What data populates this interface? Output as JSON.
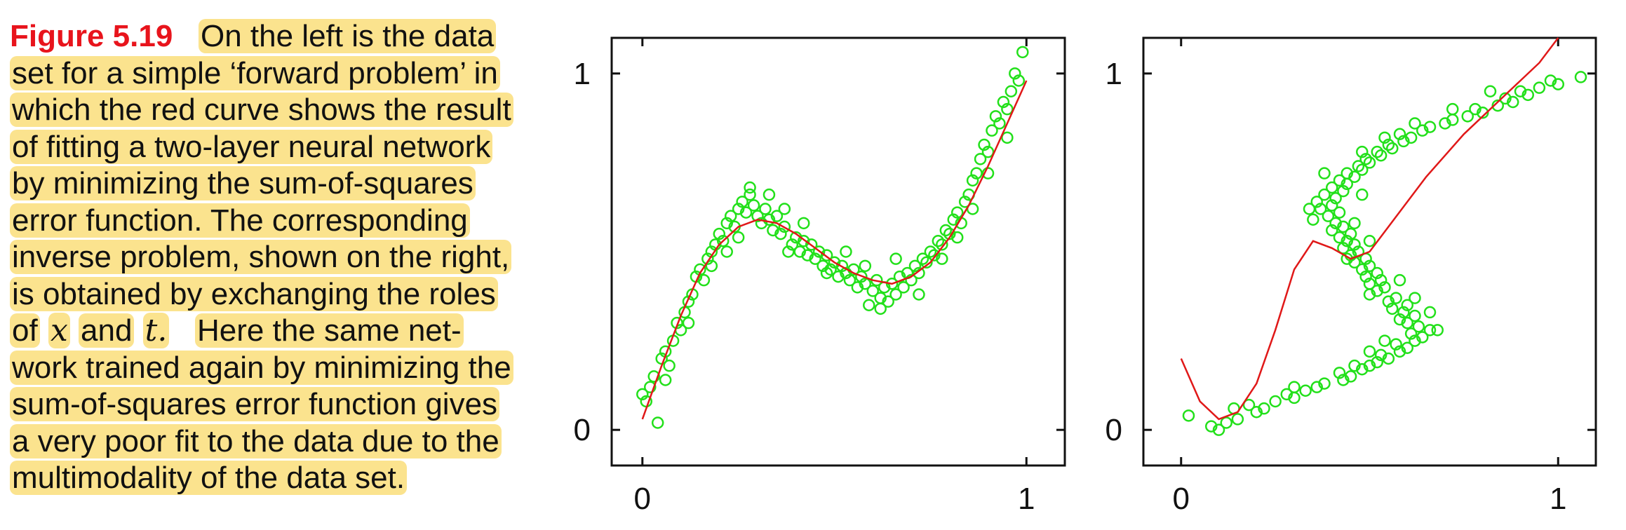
{
  "caption": {
    "label": "Figure 5.19",
    "lines": [
      "On the left is the data",
      "set for a simple ‘forward problem’ in",
      "which the red curve shows the result",
      "of fitting a two-layer neural network",
      "by minimizing the sum-of-squares",
      "error function.  The corresponding",
      "inverse problem, shown on the right,",
      "is obtained by exchanging the roles",
      "Here the same net-",
      "work trained again by minimizing the",
      "sum-of-squares error function gives",
      "a very poor fit to the data due to the",
      "multimodality of the data set."
    ],
    "roles_of": "of",
    "var_x": "x",
    "and_word": "and",
    "var_t": "t."
  },
  "colors": {
    "points": "#22e01a",
    "curve": "#e01818",
    "highlight": "#fbe38e"
  },
  "chart_data": [
    {
      "type": "scatter",
      "title": "",
      "xlabel": "",
      "ylabel": "",
      "xlim": [
        -0.08,
        1.1
      ],
      "ylim": [
        -0.1,
        1.1
      ],
      "x_ticks": [
        "0",
        "1"
      ],
      "y_ticks": [
        "0",
        "1"
      ],
      "points": [
        [
          0.0,
          0.1
        ],
        [
          0.01,
          0.08
        ],
        [
          0.02,
          0.12
        ],
        [
          0.03,
          0.15
        ],
        [
          0.04,
          0.02
        ],
        [
          0.05,
          0.2
        ],
        [
          0.06,
          0.22
        ],
        [
          0.07,
          0.18
        ],
        [
          0.08,
          0.25
        ],
        [
          0.09,
          0.3
        ],
        [
          0.1,
          0.28
        ],
        [
          0.11,
          0.33
        ],
        [
          0.12,
          0.36
        ],
        [
          0.13,
          0.38
        ],
        [
          0.14,
          0.43
        ],
        [
          0.15,
          0.45
        ],
        [
          0.16,
          0.42
        ],
        [
          0.17,
          0.48
        ],
        [
          0.18,
          0.5
        ],
        [
          0.19,
          0.52
        ],
        [
          0.2,
          0.55
        ],
        [
          0.21,
          0.53
        ],
        [
          0.22,
          0.58
        ],
        [
          0.23,
          0.6
        ],
        [
          0.24,
          0.57
        ],
        [
          0.25,
          0.62
        ],
        [
          0.26,
          0.64
        ],
        [
          0.27,
          0.61
        ],
        [
          0.28,
          0.66
        ],
        [
          0.29,
          0.63
        ],
        [
          0.3,
          0.6
        ],
        [
          0.31,
          0.58
        ],
        [
          0.32,
          0.62
        ],
        [
          0.33,
          0.59
        ],
        [
          0.34,
          0.56
        ],
        [
          0.35,
          0.6
        ],
        [
          0.36,
          0.55
        ],
        [
          0.37,
          0.57
        ],
        [
          0.38,
          0.5
        ],
        [
          0.39,
          0.52
        ],
        [
          0.4,
          0.54
        ],
        [
          0.41,
          0.5
        ],
        [
          0.42,
          0.53
        ],
        [
          0.43,
          0.49
        ],
        [
          0.44,
          0.52
        ],
        [
          0.45,
          0.48
        ],
        [
          0.46,
          0.5
        ],
        [
          0.47,
          0.46
        ],
        [
          0.48,
          0.49
        ],
        [
          0.49,
          0.45
        ],
        [
          0.5,
          0.47
        ],
        [
          0.51,
          0.43
        ],
        [
          0.52,
          0.46
        ],
        [
          0.53,
          0.44
        ],
        [
          0.54,
          0.42
        ],
        [
          0.55,
          0.45
        ],
        [
          0.56,
          0.4
        ],
        [
          0.57,
          0.43
        ],
        [
          0.58,
          0.41
        ],
        [
          0.59,
          0.35
        ],
        [
          0.6,
          0.39
        ],
        [
          0.61,
          0.42
        ],
        [
          0.62,
          0.37
        ],
        [
          0.63,
          0.4
        ],
        [
          0.64,
          0.36
        ],
        [
          0.65,
          0.41
        ],
        [
          0.66,
          0.38
        ],
        [
          0.67,
          0.43
        ],
        [
          0.68,
          0.4
        ],
        [
          0.69,
          0.44
        ],
        [
          0.7,
          0.42
        ],
        [
          0.71,
          0.46
        ],
        [
          0.72,
          0.44
        ],
        [
          0.73,
          0.48
        ],
        [
          0.74,
          0.47
        ],
        [
          0.75,
          0.5
        ],
        [
          0.76,
          0.49
        ],
        [
          0.77,
          0.53
        ],
        [
          0.78,
          0.52
        ],
        [
          0.79,
          0.56
        ],
        [
          0.8,
          0.55
        ],
        [
          0.81,
          0.59
        ],
        [
          0.82,
          0.61
        ],
        [
          0.83,
          0.58
        ],
        [
          0.84,
          0.64
        ],
        [
          0.85,
          0.66
        ],
        [
          0.86,
          0.7
        ],
        [
          0.87,
          0.72
        ],
        [
          0.88,
          0.76
        ],
        [
          0.89,
          0.8
        ],
        [
          0.9,
          0.78
        ],
        [
          0.91,
          0.84
        ],
        [
          0.92,
          0.88
        ],
        [
          0.93,
          0.86
        ],
        [
          0.94,
          0.92
        ],
        [
          0.95,
          0.9
        ],
        [
          0.96,
          0.95
        ],
        [
          0.97,
          1.0
        ],
        [
          0.98,
          0.98
        ],
        [
          0.99,
          1.06
        ],
        [
          0.06,
          0.14
        ],
        [
          0.12,
          0.3
        ],
        [
          0.18,
          0.46
        ],
        [
          0.22,
          0.5
        ],
        [
          0.25,
          0.54
        ],
        [
          0.28,
          0.68
        ],
        [
          0.33,
          0.66
        ],
        [
          0.37,
          0.62
        ],
        [
          0.42,
          0.58
        ],
        [
          0.48,
          0.44
        ],
        [
          0.53,
          0.5
        ],
        [
          0.58,
          0.46
        ],
        [
          0.62,
          0.34
        ],
        [
          0.66,
          0.48
        ],
        [
          0.72,
          0.38
        ],
        [
          0.78,
          0.48
        ],
        [
          0.82,
          0.54
        ],
        [
          0.86,
          0.62
        ],
        [
          0.9,
          0.72
        ],
        [
          0.95,
          0.82
        ]
      ],
      "curve_x": [
        0,
        0.05,
        0.1,
        0.15,
        0.2,
        0.25,
        0.3,
        0.35,
        0.4,
        0.45,
        0.5,
        0.55,
        0.6,
        0.65,
        0.7,
        0.75,
        0.8,
        0.85,
        0.9,
        0.95,
        1.0
      ],
      "curve_y": [
        0.03,
        0.18,
        0.32,
        0.44,
        0.52,
        0.57,
        0.59,
        0.58,
        0.55,
        0.51,
        0.47,
        0.44,
        0.42,
        0.41,
        0.43,
        0.47,
        0.54,
        0.63,
        0.74,
        0.86,
        0.98
      ]
    },
    {
      "type": "scatter",
      "title": "",
      "xlabel": "",
      "ylabel": "",
      "xlim": [
        -0.1,
        1.1
      ],
      "ylim": [
        -0.1,
        1.1
      ],
      "x_ticks": [
        "0",
        "1"
      ],
      "y_ticks": [
        "0",
        "1"
      ],
      "points": [
        [
          0.1,
          0.0
        ],
        [
          0.08,
          0.01
        ],
        [
          0.12,
          0.02
        ],
        [
          0.15,
          0.03
        ],
        [
          0.02,
          0.04
        ],
        [
          0.2,
          0.05
        ],
        [
          0.22,
          0.06
        ],
        [
          0.18,
          0.07
        ],
        [
          0.25,
          0.08
        ],
        [
          0.3,
          0.09
        ],
        [
          0.28,
          0.1
        ],
        [
          0.33,
          0.11
        ],
        [
          0.36,
          0.12
        ],
        [
          0.38,
          0.13
        ],
        [
          0.43,
          0.14
        ],
        [
          0.45,
          0.15
        ],
        [
          0.42,
          0.16
        ],
        [
          0.48,
          0.17
        ],
        [
          0.5,
          0.18
        ],
        [
          0.52,
          0.19
        ],
        [
          0.55,
          0.2
        ],
        [
          0.53,
          0.21
        ],
        [
          0.58,
          0.22
        ],
        [
          0.6,
          0.23
        ],
        [
          0.57,
          0.24
        ],
        [
          0.62,
          0.25
        ],
        [
          0.64,
          0.26
        ],
        [
          0.61,
          0.27
        ],
        [
          0.66,
          0.28
        ],
        [
          0.63,
          0.29
        ],
        [
          0.6,
          0.3
        ],
        [
          0.58,
          0.31
        ],
        [
          0.62,
          0.32
        ],
        [
          0.59,
          0.33
        ],
        [
          0.56,
          0.34
        ],
        [
          0.6,
          0.35
        ],
        [
          0.55,
          0.36
        ],
        [
          0.57,
          0.37
        ],
        [
          0.5,
          0.38
        ],
        [
          0.52,
          0.39
        ],
        [
          0.54,
          0.4
        ],
        [
          0.5,
          0.41
        ],
        [
          0.53,
          0.42
        ],
        [
          0.49,
          0.43
        ],
        [
          0.52,
          0.44
        ],
        [
          0.48,
          0.45
        ],
        [
          0.5,
          0.46
        ],
        [
          0.46,
          0.47
        ],
        [
          0.49,
          0.48
        ],
        [
          0.45,
          0.49
        ],
        [
          0.47,
          0.5
        ],
        [
          0.43,
          0.51
        ],
        [
          0.46,
          0.52
        ],
        [
          0.44,
          0.53
        ],
        [
          0.42,
          0.54
        ],
        [
          0.45,
          0.55
        ],
        [
          0.4,
          0.56
        ],
        [
          0.43,
          0.57
        ],
        [
          0.41,
          0.58
        ],
        [
          0.35,
          0.59
        ],
        [
          0.39,
          0.6
        ],
        [
          0.42,
          0.61
        ],
        [
          0.37,
          0.62
        ],
        [
          0.4,
          0.63
        ],
        [
          0.36,
          0.64
        ],
        [
          0.41,
          0.65
        ],
        [
          0.38,
          0.66
        ],
        [
          0.43,
          0.67
        ],
        [
          0.4,
          0.68
        ],
        [
          0.44,
          0.69
        ],
        [
          0.42,
          0.7
        ],
        [
          0.46,
          0.71
        ],
        [
          0.44,
          0.72
        ],
        [
          0.48,
          0.73
        ],
        [
          0.47,
          0.74
        ],
        [
          0.5,
          0.75
        ],
        [
          0.49,
          0.76
        ],
        [
          0.53,
          0.77
        ],
        [
          0.52,
          0.78
        ],
        [
          0.56,
          0.79
        ],
        [
          0.55,
          0.8
        ],
        [
          0.59,
          0.81
        ],
        [
          0.61,
          0.82
        ],
        [
          0.58,
          0.83
        ],
        [
          0.64,
          0.84
        ],
        [
          0.66,
          0.85
        ],
        [
          0.7,
          0.86
        ],
        [
          0.72,
          0.87
        ],
        [
          0.76,
          0.88
        ],
        [
          0.8,
          0.89
        ],
        [
          0.78,
          0.9
        ],
        [
          0.84,
          0.91
        ],
        [
          0.88,
          0.92
        ],
        [
          0.86,
          0.93
        ],
        [
          0.92,
          0.94
        ],
        [
          0.9,
          0.95
        ],
        [
          0.95,
          0.96
        ],
        [
          1.0,
          0.97
        ],
        [
          0.98,
          0.98
        ],
        [
          1.06,
          0.99
        ],
        [
          0.14,
          0.06
        ],
        [
          0.3,
          0.12
        ],
        [
          0.46,
          0.18
        ],
        [
          0.5,
          0.22
        ],
        [
          0.54,
          0.25
        ],
        [
          0.68,
          0.28
        ],
        [
          0.66,
          0.33
        ],
        [
          0.62,
          0.37
        ],
        [
          0.58,
          0.42
        ],
        [
          0.44,
          0.48
        ],
        [
          0.5,
          0.53
        ],
        [
          0.46,
          0.58
        ],
        [
          0.34,
          0.62
        ],
        [
          0.48,
          0.66
        ],
        [
          0.38,
          0.72
        ],
        [
          0.48,
          0.78
        ],
        [
          0.54,
          0.82
        ],
        [
          0.62,
          0.86
        ],
        [
          0.72,
          0.9
        ],
        [
          0.82,
          0.95
        ]
      ],
      "curve_x": [
        0,
        0.05,
        0.1,
        0.15,
        0.2,
        0.25,
        0.3,
        0.35,
        0.4,
        0.45,
        0.5,
        0.55,
        0.6,
        0.65,
        0.7,
        0.75,
        0.8,
        0.85,
        0.9,
        0.95,
        1.0
      ],
      "curve_y": [
        0.2,
        0.08,
        0.03,
        0.05,
        0.13,
        0.28,
        0.45,
        0.53,
        0.51,
        0.48,
        0.5,
        0.57,
        0.64,
        0.71,
        0.77,
        0.83,
        0.88,
        0.93,
        0.98,
        1.03,
        1.1
      ]
    }
  ]
}
